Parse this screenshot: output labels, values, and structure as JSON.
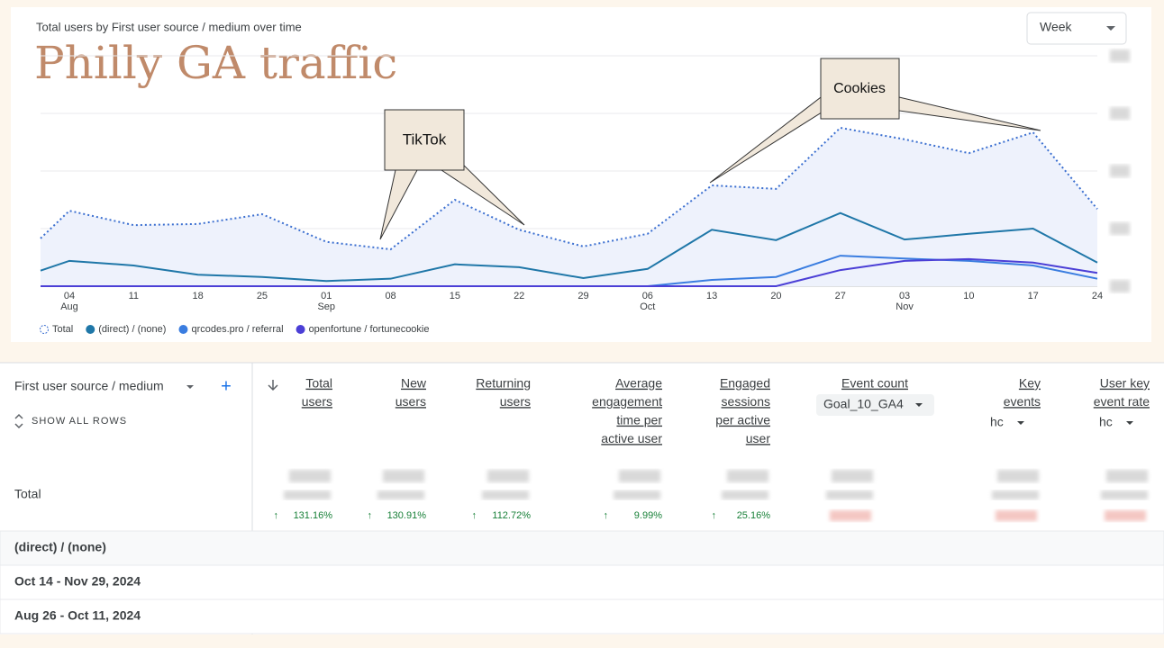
{
  "chart_data": {
    "type": "line",
    "title": "Total users by First user source / medium over time",
    "annotation_title": "Philly GA traffic",
    "annotations": [
      "TikTok",
      "Cookies"
    ],
    "period_selector": "Week",
    "categories": [
      null,
      "04",
      "11",
      "18",
      "25",
      "01",
      "08",
      "15",
      "22",
      "29",
      "06",
      "13",
      "20",
      "27",
      "03",
      "10",
      "17",
      "24"
    ],
    "category_months": [
      null,
      "Aug",
      null,
      null,
      null,
      "Sep",
      null,
      null,
      null,
      null,
      "Oct",
      null,
      null,
      null,
      "Nov",
      null,
      null,
      null
    ],
    "ylim": [
      0,
      4
    ],
    "yticks": [
      0,
      1,
      2,
      3,
      4
    ],
    "grid": true,
    "series": [
      {
        "name": "Total",
        "color": "#3b6fd0",
        "style": "dotted",
        "fill": "#eef2fc",
        "values": [
          0.83,
          1.31,
          1.06,
          1.08,
          1.25,
          0.77,
          0.64,
          1.5,
          0.98,
          0.69,
          0.91,
          1.75,
          1.69,
          2.75,
          2.55,
          2.31,
          2.67,
          1.34
        ]
      },
      {
        "name": "(direct) / (none)",
        "color": "#1f77a8",
        "values": [
          0.27,
          0.44,
          0.36,
          0.2,
          0.16,
          0.09,
          0.13,
          0.38,
          0.33,
          0.14,
          0.3,
          0.98,
          0.8,
          1.27,
          0.81,
          0.91,
          1.0,
          0.41
        ]
      },
      {
        "name": "qrcodes.pro / referral",
        "color": "#3a7de0",
        "values": [
          0,
          0,
          0,
          0,
          0,
          0,
          0,
          0,
          0,
          0,
          0,
          0.11,
          0.16,
          0.53,
          0.48,
          0.44,
          0.36,
          0.13
        ]
      },
      {
        "name": "openfortune / fortunecookie",
        "color": "#4b3fd6",
        "values": [
          0,
          0,
          0,
          0,
          0,
          0,
          0,
          0,
          0,
          0,
          0,
          0,
          0,
          0.28,
          0.44,
          0.47,
          0.41,
          0.23
        ]
      }
    ]
  },
  "table": {
    "dimension": "First user source / medium",
    "show_all_rows": "SHOW ALL ROWS",
    "columns": [
      {
        "header": [
          "Total",
          "users"
        ],
        "change": "131.16%"
      },
      {
        "header": [
          "New",
          "users"
        ],
        "change": "130.91%"
      },
      {
        "header": [
          "Returning",
          "users"
        ],
        "change": "112.72%"
      },
      {
        "header": [
          "Average",
          "engagement",
          "time per",
          "active user"
        ],
        "change": "9.99%"
      },
      {
        "header": [
          "Engaged",
          "sessions",
          "per active",
          "user"
        ],
        "change": "25.16%"
      },
      {
        "header": [
          "Event count"
        ],
        "selector": "Goal_10_GA4"
      },
      {
        "header": [
          "Key",
          "events"
        ],
        "selector": "hc"
      },
      {
        "header": [
          "User key",
          "event rate"
        ],
        "selector": "hc"
      }
    ],
    "rows": [
      "Total",
      "(direct) / (none)",
      "Oct 14 - Nov 29, 2024",
      "Aug 26 - Oct 11, 2024"
    ]
  }
}
